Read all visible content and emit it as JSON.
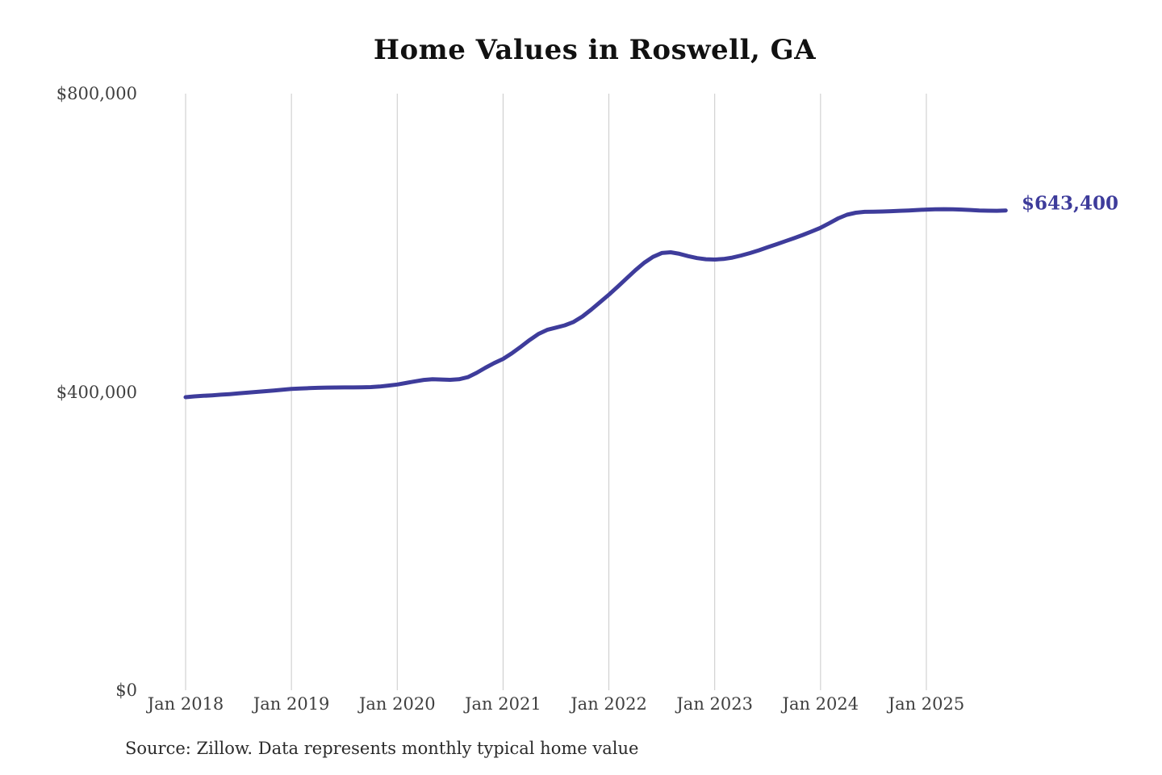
{
  "title": "Home Values in Roswell, GA",
  "source": "Source: Zillow. Data represents monthly typical home value",
  "colors": {
    "line": "#3e3c9b",
    "grid": "#c9c9c9",
    "title_text": "#111111",
    "axis_text": "#3f3f3f",
    "end_label_text": "#3e3c9b",
    "source_text": "#2b2b2b",
    "background": "#ffffff"
  },
  "chart_data": {
    "type": "line",
    "title": "Home Values in Roswell, GA",
    "series_name": "Monthly typical home value",
    "end_label": "$643,400",
    "end_value": 643400,
    "ylim": [
      0,
      800000
    ],
    "grid": "vertical-only",
    "legend": "none",
    "y_ticks": [
      {
        "label": "$800,000",
        "value": 800000
      },
      {
        "label": "$400,000",
        "value": 400000
      },
      {
        "label": "$0",
        "value": 0
      }
    ],
    "x_tick_labels": [
      "Jan 2018",
      "Jan 2019",
      "Jan 2020",
      "Jan 2021",
      "Jan 2022",
      "Jan 2023",
      "Jan 2024",
      "Jan 2025"
    ],
    "x": [
      "2018-01",
      "2018-02",
      "2018-03",
      "2018-04",
      "2018-05",
      "2018-06",
      "2018-07",
      "2018-08",
      "2018-09",
      "2018-10",
      "2018-11",
      "2018-12",
      "2019-01",
      "2019-02",
      "2019-03",
      "2019-04",
      "2019-05",
      "2019-06",
      "2019-07",
      "2019-08",
      "2019-09",
      "2019-10",
      "2019-11",
      "2019-12",
      "2020-01",
      "2020-02",
      "2020-03",
      "2020-04",
      "2020-05",
      "2020-06",
      "2020-07",
      "2020-08",
      "2020-09",
      "2020-10",
      "2020-11",
      "2020-12",
      "2021-01",
      "2021-02",
      "2021-03",
      "2021-04",
      "2021-05",
      "2021-06",
      "2021-07",
      "2021-08",
      "2021-09",
      "2021-10",
      "2021-11",
      "2021-12",
      "2022-01",
      "2022-02",
      "2022-03",
      "2022-04",
      "2022-05",
      "2022-06",
      "2022-07",
      "2022-08",
      "2022-09",
      "2022-10",
      "2022-11",
      "2022-12",
      "2023-01",
      "2023-02",
      "2023-03",
      "2023-04",
      "2023-05",
      "2023-06",
      "2023-07",
      "2023-08",
      "2023-09",
      "2023-10",
      "2023-11",
      "2023-12",
      "2024-01",
      "2024-02",
      "2024-03",
      "2024-04",
      "2024-05",
      "2024-06",
      "2024-07",
      "2024-08",
      "2024-09",
      "2024-10",
      "2024-11",
      "2024-12",
      "2025-01",
      "2025-02",
      "2025-03",
      "2025-04",
      "2025-05",
      "2025-06",
      "2025-07",
      "2025-08",
      "2025-09",
      "2025-10"
    ],
    "values": [
      393000,
      394000,
      394800,
      395500,
      396300,
      397100,
      398000,
      399000,
      400000,
      401000,
      402000,
      403000,
      404000,
      404600,
      405100,
      405500,
      405800,
      406000,
      406100,
      406100,
      406200,
      406500,
      407300,
      408500,
      410000,
      412000,
      414200,
      416100,
      417100,
      416700,
      416200,
      417000,
      419800,
      425500,
      432500,
      438800,
      444300,
      451800,
      460500,
      469500,
      477600,
      483200,
      486300,
      489300,
      493900,
      501200,
      510400,
      520400,
      530400,
      541200,
      552200,
      563100,
      573200,
      581100,
      586300,
      587300,
      585200,
      582100,
      579500,
      578000,
      577500,
      578300,
      580100,
      582900,
      586200,
      589900,
      594000,
      598000,
      602100,
      606200,
      610600,
      615200,
      620100,
      626400,
      632700,
      637600,
      640300,
      641500,
      641600,
      641900,
      642400,
      642900,
      643400,
      644000,
      644500,
      644900,
      645100,
      644900,
      644500,
      644000,
      643400,
      643000,
      642900,
      643400
    ]
  }
}
